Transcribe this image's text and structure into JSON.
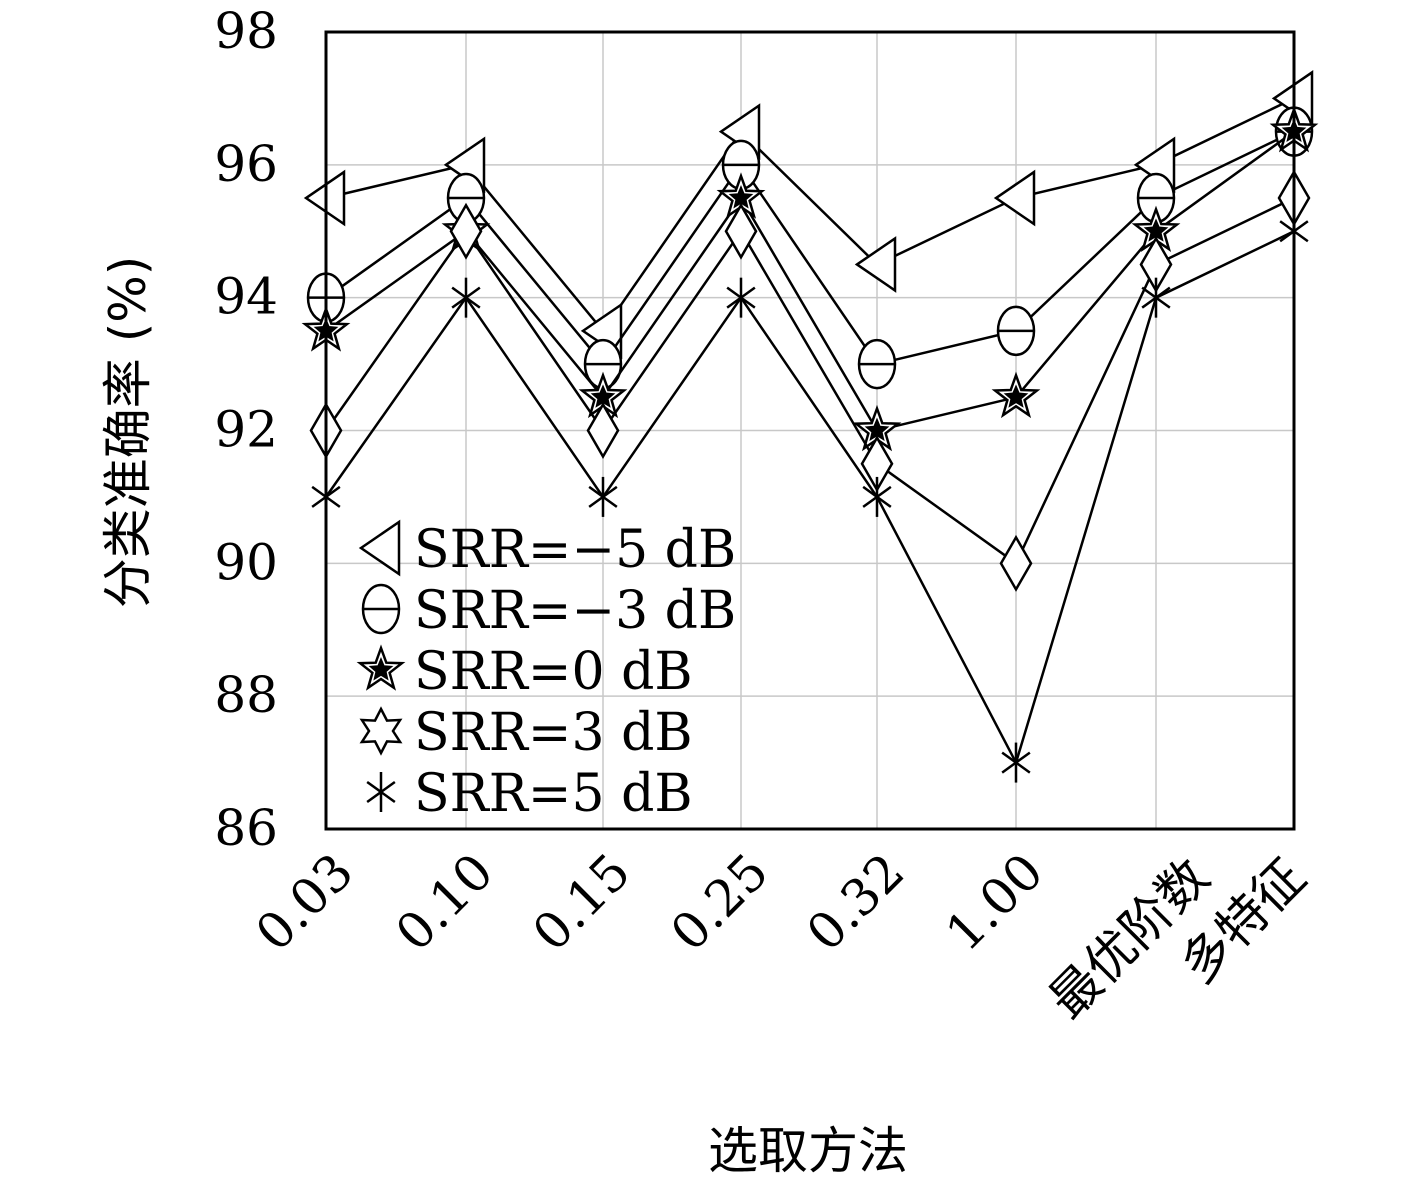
{
  "chart_data": {
    "type": "line",
    "xlabel": "选取方法",
    "ylabel": "分类准确率 (%)",
    "categories": [
      "0.03",
      "0.10",
      "0.15",
      "0.25",
      "0.32",
      "1.00",
      "最优阶数",
      "多特征"
    ],
    "ylim": [
      86,
      98
    ],
    "yticks": [
      86,
      88,
      90,
      92,
      94,
      96,
      98
    ],
    "grid": true,
    "legend_position": "lower-left",
    "series": [
      {
        "name": "SRR=−5 dB",
        "marker": "triangle-left",
        "values": [
          95.5,
          96,
          93.5,
          96.5,
          94.5,
          95.5,
          96,
          97
        ]
      },
      {
        "name": "SRR=−3 dB",
        "marker": "circle",
        "values": [
          94,
          95.5,
          93,
          96,
          93,
          93.5,
          95.5,
          96.5
        ]
      },
      {
        "name": "SRR=0 dB",
        "marker": "star-filled",
        "values": [
          93.5,
          95,
          92.5,
          95.5,
          92,
          92.5,
          95,
          96.5
        ]
      },
      {
        "name": "SRR=3 dB",
        "marker": "diamond",
        "values": [
          92,
          95,
          92,
          95,
          91.5,
          90,
          94.5,
          95.5
        ]
      },
      {
        "name": "SRR=5 dB",
        "marker": "x-star",
        "values": [
          91,
          94,
          91,
          94,
          91,
          87,
          94,
          95
        ]
      }
    ]
  }
}
